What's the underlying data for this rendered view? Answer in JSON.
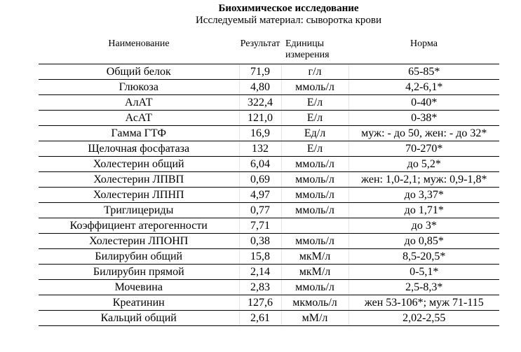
{
  "title": "Биохимическое исследование",
  "subtitle": "Исследуемый материал: сыворотка крови",
  "headers": {
    "name": "Наименование",
    "result": "Результат",
    "units": "Единицы измерения",
    "norm": "Норма"
  },
  "rows": [
    {
      "name": "Общий белок",
      "result": "71,9",
      "units": "г/л",
      "norm": "65-85*"
    },
    {
      "name": "Глюкоза",
      "result": "4,80",
      "units": "ммоль/л",
      "norm": "4,2-6,1*"
    },
    {
      "name": "АлАТ",
      "result": "322,4",
      "units": "Е/л",
      "norm": "0-40*"
    },
    {
      "name": "АсАТ",
      "result": "121,0",
      "units": "Е/л",
      "norm": "0-38*"
    },
    {
      "name": "Гамма ГТФ",
      "result": "16,9",
      "units": "Ед/л",
      "norm": "муж: - до 50, жен: - до 32*"
    },
    {
      "name": "Щелочная фосфатаза",
      "result": "132",
      "units": "Е/л",
      "norm": "70-270*"
    },
    {
      "name": "Холестерин общий",
      "result": "6,04",
      "units": "ммоль/л",
      "norm": "до 5,2*"
    },
    {
      "name": "Холестерин ЛПВП",
      "result": "0,69",
      "units": "ммоль/л",
      "norm": "жен: 1,0-2,1; муж: 0,9-1,8*"
    },
    {
      "name": "Холестерин ЛПНП",
      "result": "4,97",
      "units": "ммоль/л",
      "norm": "до 3,37*"
    },
    {
      "name": "Триглицериды",
      "result": "0,77",
      "units": "ммоль/л",
      "norm": "до 1,71*"
    },
    {
      "name": "Коэффициент атерогенности",
      "result": "7,71",
      "units": "",
      "norm": "до 3*"
    },
    {
      "name": "Холестерин ЛПОНП",
      "result": "0,38",
      "units": "ммоль/л",
      "norm": "до 0,85*"
    },
    {
      "name": "Билирубин общий",
      "result": "15,8",
      "units": "мкМ/л",
      "norm": "8,5-20,5*"
    },
    {
      "name": "Билирубин прямой",
      "result": "2,14",
      "units": "мкМ/л",
      "norm": "0-5,1*"
    },
    {
      "name": "Мочевина",
      "result": "2,83",
      "units": "ммоль/л",
      "norm": "2,5-8,3*"
    },
    {
      "name": "Креатинин",
      "result": "127,6",
      "units": "мкмоль/л",
      "norm": "жен 53-106*; муж 71-115"
    },
    {
      "name": "Кальций общий",
      "result": "2,61",
      "units": "мМ/л",
      "norm": "2,02-2,55"
    }
  ]
}
